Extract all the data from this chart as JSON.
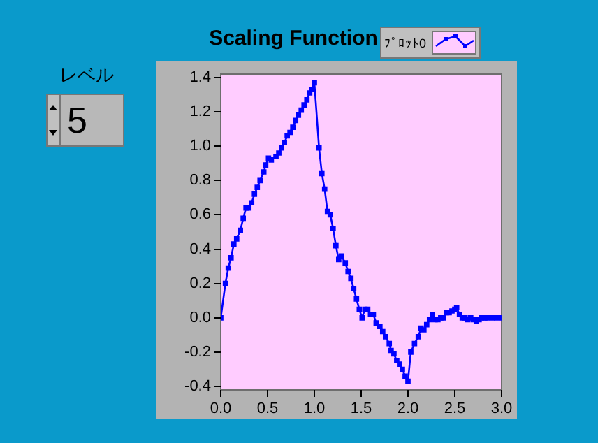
{
  "chart_data": {
    "type": "line",
    "title": "Scaling Function",
    "annotations": [
      "レベル",
      "5"
    ],
    "legend": "top right",
    "marker": "square",
    "line_style": "solid",
    "grid": false,
    "xlim": [
      0,
      3
    ],
    "xticks": [
      {
        "value": 0,
        "label": "0.0"
      },
      0.5,
      {
        "value": 1,
        "label": "1.0"
      },
      1.5,
      {
        "value": 2,
        "label": "2.0"
      },
      2.5,
      {
        "value": 3,
        "label": "3.0"
      }
    ],
    "ylim": [
      -0.42,
      1.42
    ],
    "yticks": [
      -0.4,
      -0.2,
      {
        "value": 0,
        "label": "0.0"
      },
      0.2,
      0.4,
      0.6,
      0.8,
      {
        "value": 1,
        "label": "1.0"
      },
      1.2,
      1.4
    ],
    "series": [
      {
        "name": "ﾌﾟﾛｯﾄ0",
        "color": "#0000ff",
        "x": [
          0,
          0.05,
          0.08,
          0.11,
          0.14,
          0.17,
          0.21,
          0.24,
          0.27,
          0.3,
          0.33,
          0.36,
          0.39,
          0.42,
          0.46,
          0.48,
          0.51,
          0.54,
          0.59,
          0.62,
          0.65,
          0.68,
          0.71,
          0.74,
          0.77,
          0.8,
          0.83,
          0.86,
          0.89,
          0.92,
          0.95,
          0.97,
          1.0,
          1.05,
          1.08,
          1.11,
          1.14,
          1.17,
          1.2,
          1.23,
          1.26,
          1.29,
          1.33,
          1.36,
          1.39,
          1.42,
          1.45,
          1.48,
          1.51,
          1.54,
          1.57,
          1.6,
          1.63,
          1.66,
          1.7,
          1.73,
          1.76,
          1.8,
          1.82,
          1.85,
          1.88,
          1.91,
          1.94,
          1.97,
          2.0,
          2.03,
          2.07,
          2.11,
          2.14,
          2.17,
          2.2,
          2.23,
          2.26,
          2.29,
          2.32,
          2.35,
          2.38,
          2.41,
          2.44,
          2.47,
          2.5,
          2.52,
          2.55,
          2.58,
          2.61,
          2.64,
          2.67,
          2.7,
          2.73,
          2.76,
          2.79,
          2.82,
          2.85,
          2.9,
          2.95,
          3.0
        ],
        "values": [
          0,
          0.2,
          0.29,
          0.35,
          0.43,
          0.46,
          0.51,
          0.58,
          0.64,
          0.64,
          0.67,
          0.72,
          0.76,
          0.8,
          0.85,
          0.89,
          0.93,
          0.92,
          0.94,
          0.96,
          0.99,
          1.02,
          1.06,
          1.08,
          1.11,
          1.15,
          1.18,
          1.21,
          1.24,
          1.27,
          1.31,
          1.33,
          1.37,
          0.99,
          0.84,
          0.75,
          0.62,
          0.6,
          0.52,
          0.42,
          0.34,
          0.36,
          0.32,
          0.27,
          0.23,
          0.17,
          0.11,
          0.05,
          0.0,
          0.05,
          0.05,
          0.02,
          0.02,
          -0.03,
          -0.05,
          -0.08,
          -0.11,
          -0.15,
          -0.19,
          -0.21,
          -0.25,
          -0.27,
          -0.3,
          -0.34,
          -0.37,
          -0.2,
          -0.15,
          -0.11,
          -0.06,
          -0.07,
          -0.04,
          -0.01,
          0.02,
          -0.01,
          -0.01,
          0.0,
          0.0,
          0.03,
          0.03,
          0.04,
          0.05,
          0.06,
          0.02,
          0.0,
          0.0,
          -0.01,
          0.0,
          -0.01,
          -0.02,
          -0.01,
          0.0,
          0.0,
          0.0,
          0.0,
          0.0,
          0.0
        ]
      }
    ]
  }
}
